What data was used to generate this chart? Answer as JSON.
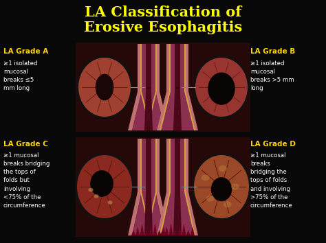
{
  "title_line1": "LA Classification of",
  "title_line2": "Erosive Esophagitis",
  "title_color": "#FFFF00",
  "background_color": "#080808",
  "panel_bg_top": "#2a0a0a",
  "panel_bg_bot": "#2a0808",
  "grade_label_color": "#FFD700",
  "desc_text_color": "#FFFFFF",
  "esoph_outer": "#C07070",
  "esoph_inner": "#8B3050",
  "esoph_lumen": "#4a0818",
  "esoph_highlight": "#D4A040",
  "esoph_flare_color": "#7a2030",
  "endo_A_base": "#A04030",
  "endo_B_base": "#A04030",
  "endo_C_base": "#904030",
  "endo_D_base": "#A05028",
  "line_color": "#888888",
  "grades": [
    {
      "label": "LA Grade A",
      "desc": "≥1 isolated\nmucosal\nbreaks ≤5\nmm long"
    },
    {
      "label": "LA Grade B",
      "desc": "≥1 isolated\nmucosal\nbreaks >5 mm\nlong"
    },
    {
      "label": "LA Grade C",
      "desc": "≥1 mucosal\nbreaks bridging\nthe tops of\nfolds but\ninvolving\n<75% of the\ncircumference"
    },
    {
      "label": "LA Grade D",
      "desc": "≥1 mucosal\nbreaks\nbridging the\ntops of folds\nand involving\n>75% of the\ncircumference"
    }
  ]
}
